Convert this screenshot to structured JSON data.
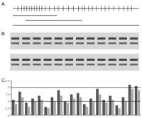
{
  "figure": {
    "panel_labels": [
      "A",
      "B",
      "C"
    ],
    "diagram": {
      "sites": [
        4,
        7,
        9,
        11,
        13,
        15,
        17,
        19,
        21,
        23,
        26,
        29,
        33,
        36,
        40,
        44,
        48,
        52,
        55,
        57,
        60,
        63,
        66,
        70,
        73,
        76,
        80,
        84,
        88,
        91,
        94
      ],
      "segments": [
        [
          0,
          35
        ],
        [
          10,
          55
        ],
        [
          0,
          100
        ]
      ]
    },
    "gel": {
      "rows": 2,
      "lanes": 12
    }
  },
  "chart_data": {
    "type": "bar",
    "categories": [
      null,
      null,
      null,
      null,
      null,
      null,
      null,
      null,
      null,
      null,
      null,
      null,
      null,
      null,
      null,
      null,
      null,
      null,
      null,
      null
    ],
    "series": [
      {
        "color": "#555555",
        "values": [
          1.1,
          1.7,
          0.9,
          1.2,
          1.4,
          0.6,
          1.3,
          1.8,
          1.0,
          1.5,
          1.6,
          0.8,
          1.2,
          1.9,
          1.1,
          1.4,
          0.7,
          1.3,
          2.2,
          2.1
        ]
      },
      {
        "color": "#aaaaaa",
        "values": [
          0.8,
          1.3,
          0.6,
          1.0,
          1.1,
          0.5,
          1.0,
          1.4,
          0.9,
          1.2,
          1.3,
          0.6,
          1.0,
          1.5,
          0.9,
          1.1,
          0.5,
          1.0,
          1.9,
          1.8
        ]
      }
    ],
    "ylim": [
      0,
      2.5
    ],
    "yticks": [
      0,
      0.5,
      1,
      1.5,
      2,
      2.5
    ],
    "reference_lines": [
      2,
      1
    ],
    "grid": false
  }
}
